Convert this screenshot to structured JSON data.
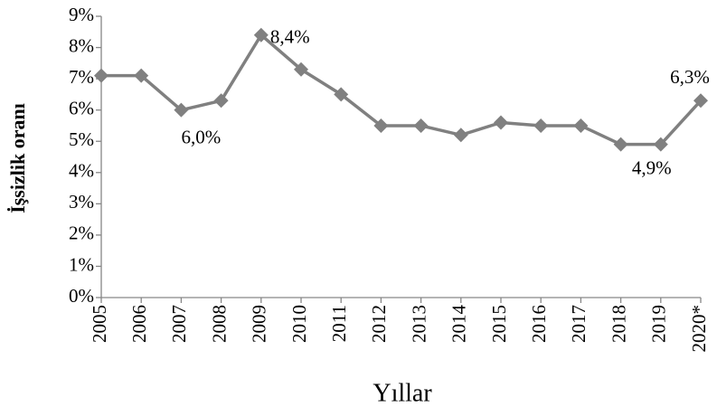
{
  "chart_data": {
    "type": "line",
    "ylabel": "İşsizlik oranı",
    "xlabel": "Yıllar",
    "categories": [
      "2005",
      "2006",
      "2007",
      "2008",
      "2009",
      "2010",
      "2011",
      "2012",
      "2013",
      "2014",
      "2015",
      "2016",
      "2017",
      "2018",
      "2019",
      "2020*"
    ],
    "series": [
      {
        "name": "İşsizlik oranı",
        "color": "#808080",
        "values": [
          7.1,
          7.1,
          6.0,
          6.3,
          8.4,
          7.3,
          6.5,
          5.5,
          5.5,
          5.2,
          5.6,
          5.5,
          5.5,
          4.9,
          4.9,
          6.3
        ],
        "value_labels": [
          null,
          null,
          "6,0%",
          null,
          "8,4%",
          null,
          null,
          null,
          null,
          null,
          null,
          null,
          null,
          null,
          "4,9%",
          "6,3%"
        ]
      }
    ],
    "ylim": [
      0,
      9
    ],
    "yticks": [
      {
        "value": 0,
        "label": "0%"
      },
      {
        "value": 1,
        "label": "1%"
      },
      {
        "value": 2,
        "label": "2%"
      },
      {
        "value": 3,
        "label": "3%"
      },
      {
        "value": 4,
        "label": "4%"
      },
      {
        "value": 5,
        "label": "5%"
      },
      {
        "value": 6,
        "label": "6%"
      },
      {
        "value": 7,
        "label": "7%"
      },
      {
        "value": 8,
        "label": "8%"
      },
      {
        "value": 9,
        "label": "9%"
      }
    ],
    "grid": false
  }
}
